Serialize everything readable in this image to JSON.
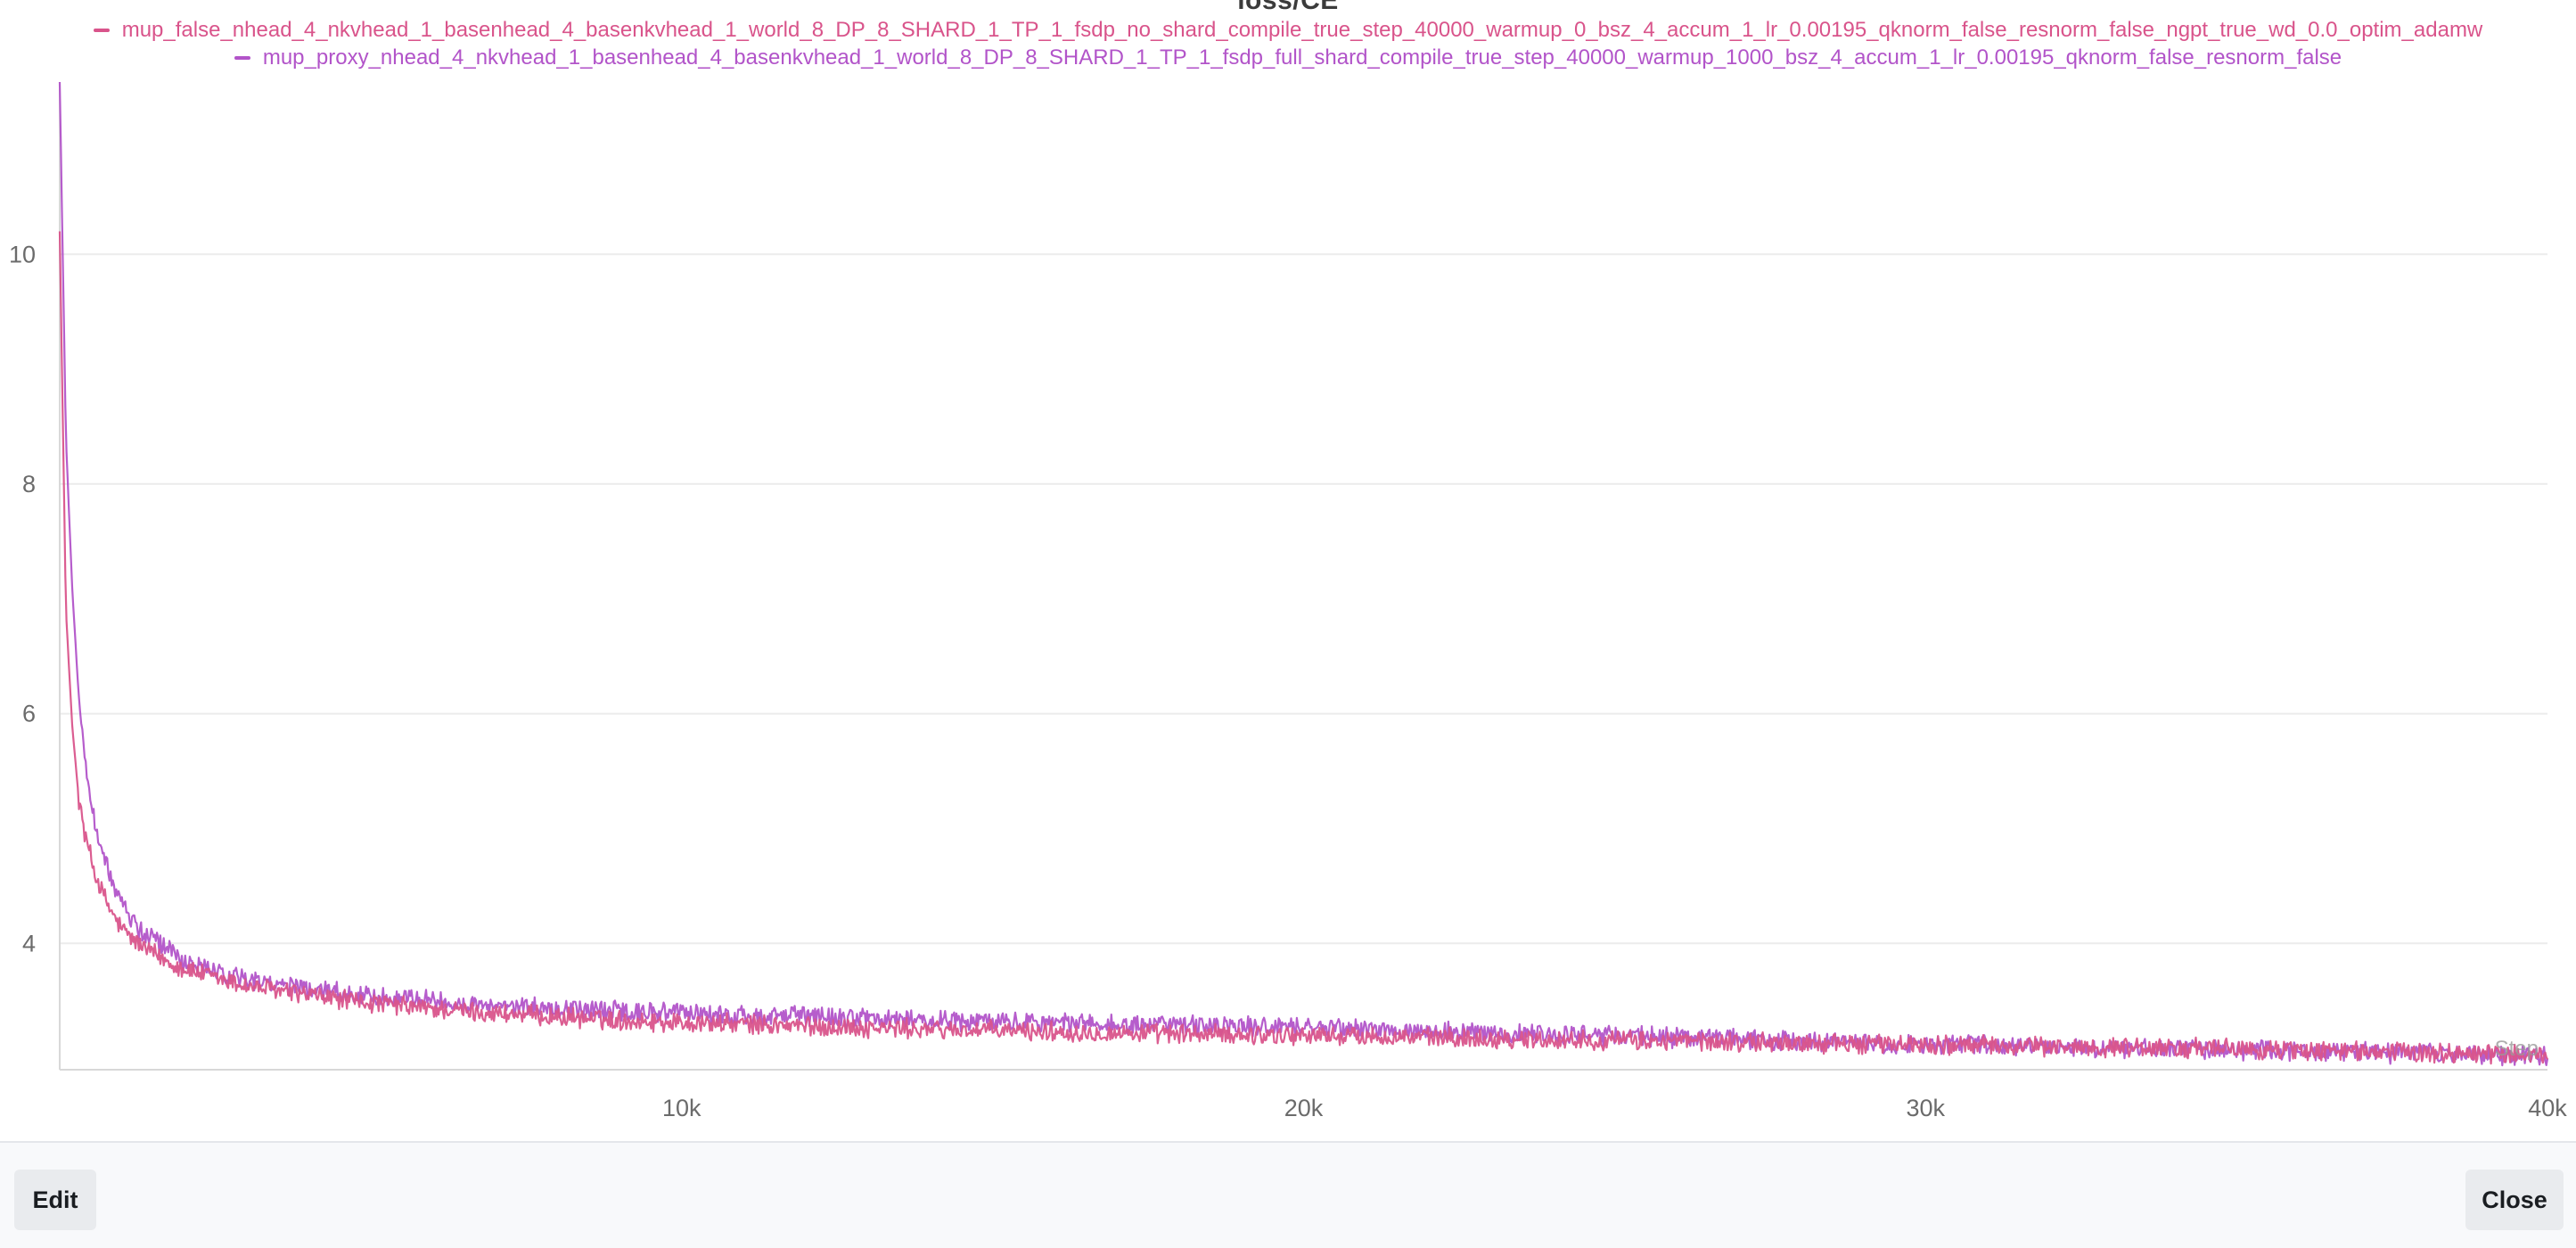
{
  "window": {
    "edit_label": "Edit",
    "close_label": "Close"
  },
  "chart_data": {
    "type": "line",
    "title": "loss/CE",
    "xlabel": "",
    "ylabel": "",
    "xlim": [
      0,
      40000
    ],
    "ylim": [
      2.9,
      11.5
    ],
    "x_ticks": [
      10000,
      20000,
      30000,
      40000
    ],
    "x_tick_labels": [
      "10k",
      "20k",
      "30k",
      "40k"
    ],
    "y_ticks": [
      4,
      6,
      8,
      10
    ],
    "y_tick_labels": [
      "4",
      "6",
      "8",
      "10"
    ],
    "grid": true,
    "legend_position": "top-center",
    "step_label": "Step",
    "series": [
      {
        "name": "mup_false_nhead_4_nkvhead_1_basenhead_4_basenkvhead_1_world_8_DP_8_SHARD_1_TP_1_fsdp_no_shard_compile_true_step_40000_warmup_0_bsz_4_accum_1_lr_0.00195_qknorm_false_resnorm_false_ngpt_true_wd_0.0_optim_adamw",
        "color": "#d9548b",
        "x": [
          0,
          100,
          200,
          300,
          400,
          600,
          800,
          1000,
          1300,
          1600,
          2000,
          2500,
          3000,
          4000,
          5000,
          6000,
          7000,
          8000,
          9000,
          10000,
          12000,
          14000,
          16000,
          18000,
          20000,
          22000,
          24000,
          26000,
          28000,
          30000,
          32000,
          34000,
          36000,
          38000,
          40000
        ],
        "y": [
          10.2,
          6.9,
          5.9,
          5.3,
          4.95,
          4.55,
          4.3,
          4.12,
          3.98,
          3.88,
          3.78,
          3.7,
          3.63,
          3.55,
          3.48,
          3.43,
          3.39,
          3.36,
          3.33,
          3.31,
          3.28,
          3.25,
          3.23,
          3.21,
          3.2,
          3.18,
          3.16,
          3.15,
          3.13,
          3.12,
          3.1,
          3.09,
          3.07,
          3.05,
          3.03
        ]
      },
      {
        "name": "mup_proxy_nhead_4_nkvhead_1_basenhead_4_basenkvhead_1_world_8_DP_8_SHARD_1_TP_1_fsdp_full_shard_compile_true_step_40000_warmup_1000_bsz_4_accum_1_lr_0.00195_qknorm_false_resnorm_false",
        "color": "#b254c9",
        "x": [
          0,
          100,
          200,
          300,
          400,
          600,
          800,
          1000,
          1300,
          1600,
          2000,
          2500,
          3000,
          4000,
          5000,
          6000,
          7000,
          8000,
          9000,
          10000,
          12000,
          14000,
          16000,
          18000,
          20000,
          22000,
          24000,
          26000,
          28000,
          30000,
          32000,
          34000,
          36000,
          38000,
          40000
        ],
        "y": [
          11.5,
          8.4,
          7.1,
          6.2,
          5.6,
          4.95,
          4.6,
          4.35,
          4.12,
          3.98,
          3.85,
          3.76,
          3.69,
          3.61,
          3.55,
          3.5,
          3.46,
          3.43,
          3.41,
          3.39,
          3.36,
          3.33,
          3.31,
          3.29,
          3.27,
          3.24,
          3.21,
          3.18,
          3.15,
          3.12,
          3.1,
          3.08,
          3.06,
          3.04,
          3.02
        ]
      }
    ]
  }
}
